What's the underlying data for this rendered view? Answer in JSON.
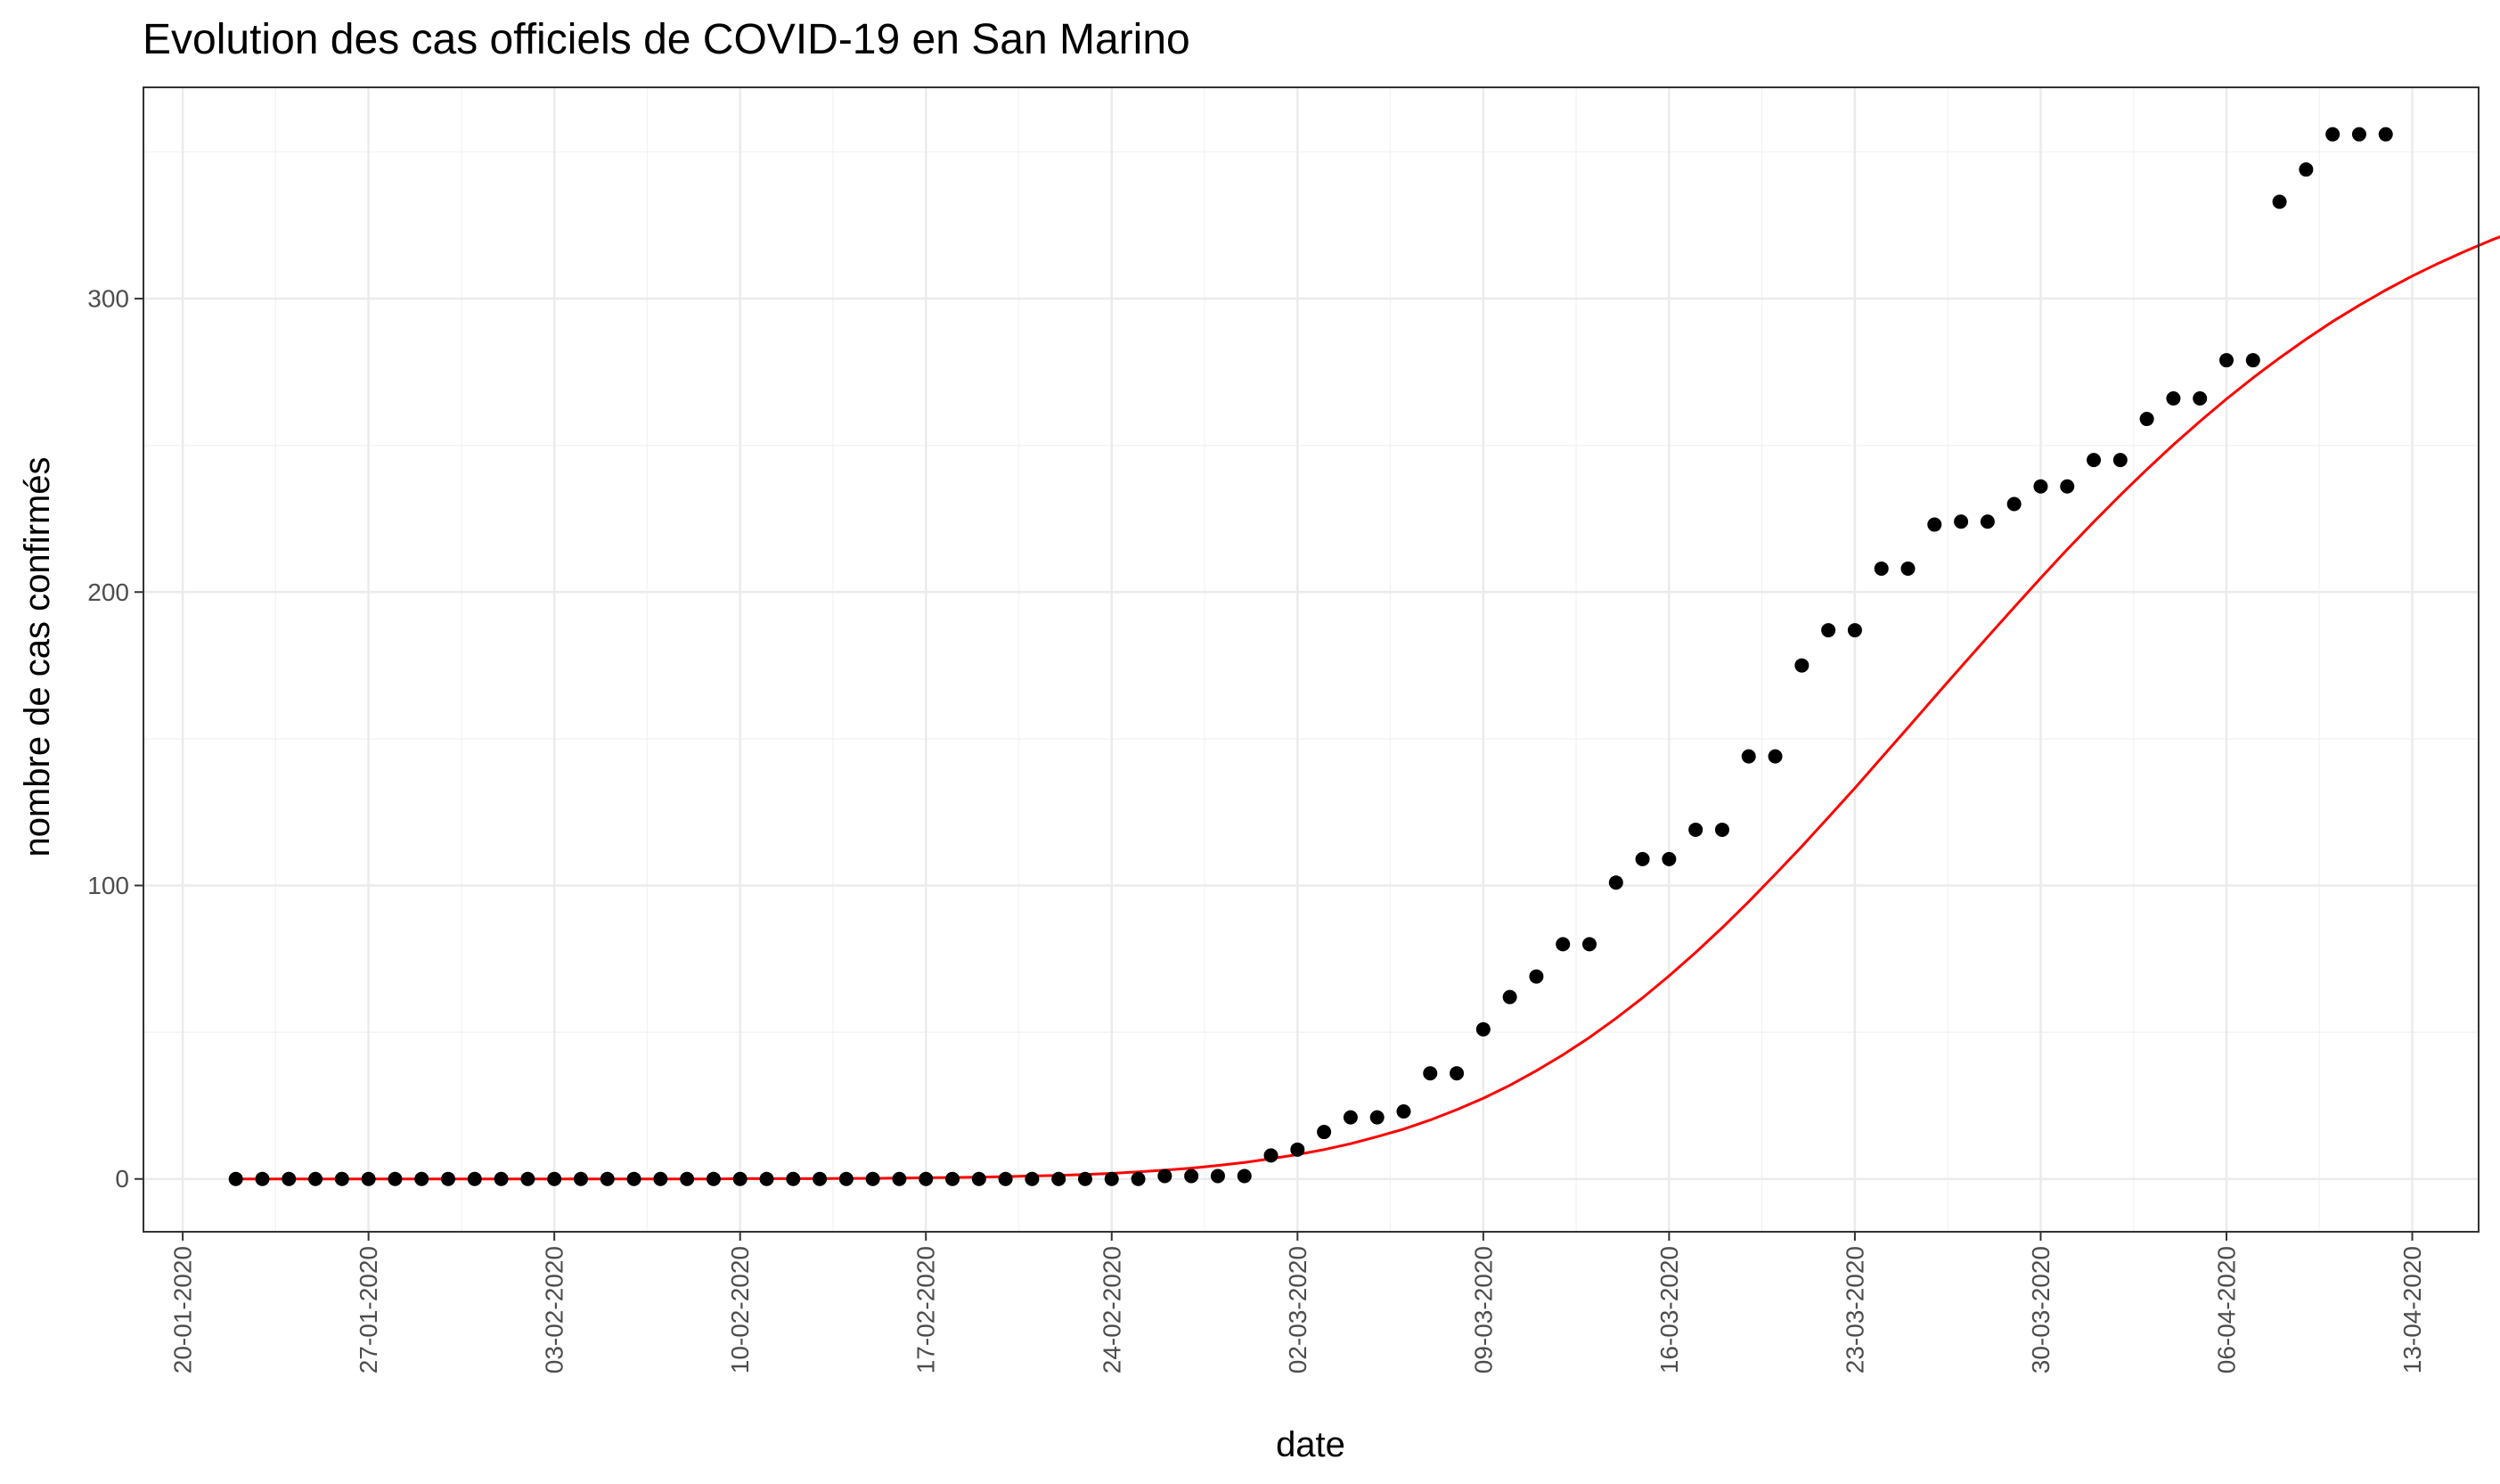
{
  "chart_data": {
    "type": "scatter",
    "title": "Evolution des cas officiels de COVID-19 en San Marino",
    "xlabel": "date",
    "ylabel": "nombre de cas confirmés",
    "x_start": "2020-01-22",
    "x_tick_labels": [
      "20-01-2020",
      "27-01-2020",
      "03-02-2020",
      "10-02-2020",
      "17-02-2020",
      "24-02-2020",
      "02-03-2020",
      "09-03-2020",
      "16-03-2020",
      "23-03-2020",
      "30-03-2020",
      "06-04-2020",
      "13-04-2020"
    ],
    "y_tick_labels": [
      "0",
      "100",
      "200",
      "300"
    ],
    "y_ticks": [
      0,
      100,
      200,
      300
    ],
    "xlim": [
      "2020-01-20",
      "2020-04-15"
    ],
    "ylim": [
      -18,
      372
    ],
    "grid": true,
    "series": [
      {
        "type": "points",
        "color": "#000000",
        "values": [
          0,
          0,
          0,
          0,
          0,
          0,
          0,
          0,
          0,
          0,
          0,
          0,
          0,
          0,
          0,
          0,
          0,
          0,
          0,
          0,
          0,
          0,
          0,
          0,
          0,
          0,
          0,
          0,
          0,
          0,
          0,
          0,
          0,
          0,
          0,
          1,
          1,
          1,
          1,
          8,
          10,
          16,
          21,
          21,
          23,
          36,
          36,
          51,
          62,
          69,
          80,
          80,
          101,
          109,
          109,
          119,
          119,
          144,
          144,
          175,
          187,
          187,
          208,
          208,
          223,
          224,
          224,
          230,
          236,
          236,
          245,
          245,
          259,
          266,
          266,
          279,
          279,
          333,
          344,
          356,
          356,
          356
        ]
      },
      {
        "type": "fitted-curve",
        "color": "#ff0000",
        "values": [
          0.0,
          0.0,
          0.0,
          0.0,
          0.0,
          0.0,
          0.0,
          0.0,
          0.0,
          0.0,
          0.0,
          0.0,
          0.0,
          0.0,
          0.0,
          0.0,
          0.0,
          0.0,
          0.0,
          0.1,
          0.1,
          0.1,
          0.1,
          0.2,
          0.2,
          0.3,
          0.4,
          0.5,
          0.6,
          0.8,
          1.0,
          1.2,
          1.5,
          1.9,
          2.4,
          3.0,
          3.7,
          4.6,
          5.6,
          6.9,
          8.3,
          10.0,
          12.0,
          14.4,
          17.0,
          20.1,
          23.6,
          27.5,
          31.9,
          36.9,
          42.3,
          48.2,
          54.7,
          61.7,
          69.2,
          77.2,
          85.6,
          94.5,
          103.8,
          113.3,
          123.2,
          133.2,
          143.5,
          153.8,
          164.2,
          174.5,
          184.7,
          194.8,
          204.8,
          214.5,
          223.9,
          233.0,
          241.8,
          250.2,
          258.2,
          265.8,
          273.0,
          279.8,
          286.2,
          292.2,
          297.7,
          302.9,
          307.7,
          312.1,
          316.2,
          320.0,
          323.4,
          326.6,
          329.5,
          332.1,
          334.5,
          336.7,
          338.6
        ]
      }
    ]
  }
}
